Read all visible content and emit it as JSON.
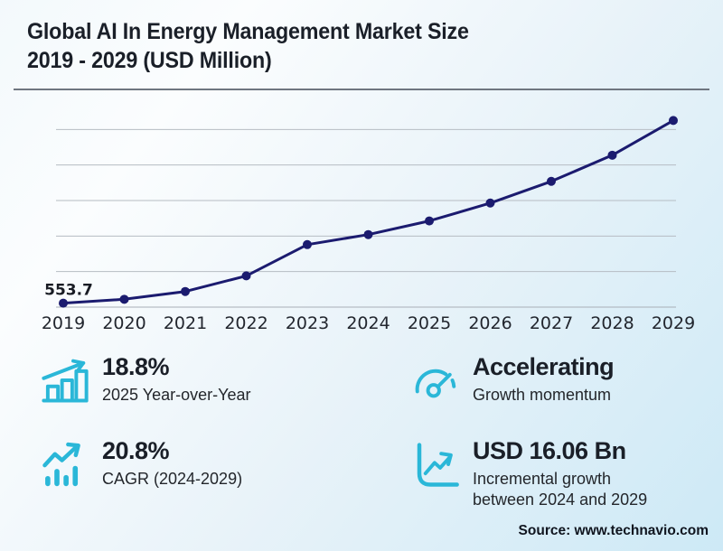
{
  "header": {
    "title_line1": "Global AI In Energy Management Market Size",
    "title_line2": "2019 - 2029 (USD Million)"
  },
  "chart_data": {
    "type": "line",
    "title": "Global AI In Energy Management Market Size 2019 - 2029 (USD Million)",
    "x": [
      "2019",
      "2020",
      "2021",
      "2022",
      "2023",
      "2024",
      "2025",
      "2026",
      "2027",
      "2028",
      "2029"
    ],
    "values": [
      553.7,
      1100,
      2200,
      4400,
      8800,
      10210,
      12130,
      14650,
      17700,
      21380,
      26270
    ],
    "unit": "USD Million",
    "ylim": [
      0,
      27500
    ],
    "gridline_step": 5000,
    "grid": true,
    "legend": false,
    "point_labels": [
      {
        "x": "2019",
        "text": "553.7"
      }
    ]
  },
  "stats": [
    {
      "icon": "bar-chart-growth-icon",
      "value": "18.8%",
      "label": "2025 Year-over-Year"
    },
    {
      "icon": "gauge-icon",
      "value": "Accelerating",
      "label": "Growth momentum"
    },
    {
      "icon": "trending-up-bars-icon",
      "value": "20.8%",
      "label": "CAGR (2024-2029)"
    },
    {
      "icon": "chart-axes-growth-icon",
      "value": "USD 16.06 Bn",
      "label": "Incremental growth between 2024 and 2029"
    }
  ],
  "footer": {
    "source": "Source: www.technavio.com"
  },
  "colors": {
    "accent_cyan": "#2ab7d8",
    "line_navy": "#1b1b6f",
    "grid_gray": "#b6bcc3",
    "text_dark": "#1a1f28",
    "bg_top_left": "#f3f9fc",
    "bg_bottom_right": "#cde9f6"
  }
}
